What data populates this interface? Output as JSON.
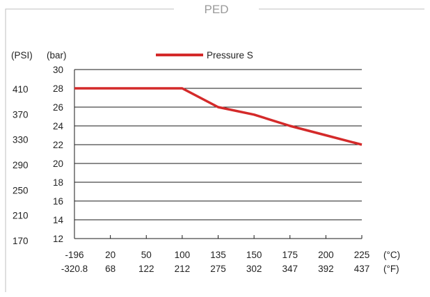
{
  "frame_title": "PED",
  "legend": {
    "label": "Pressure S",
    "color": "#d42a2a"
  },
  "chart_data": {
    "type": "line",
    "title": "PED",
    "ylabel": "(bar)",
    "ylabel_secondary": "(PSI)",
    "xlabel": "(°C)",
    "xlabel_secondary": "(°F)",
    "ylim": [
      12,
      30
    ],
    "y_ticks": [
      12,
      14,
      16,
      18,
      20,
      22,
      24,
      26,
      28,
      30
    ],
    "y_ticks_secondary": [
      170,
      210,
      250,
      290,
      330,
      370,
      410
    ],
    "x_ticks": [
      "-196",
      "20",
      "50",
      "100",
      "135",
      "150",
      "175",
      "200",
      "225"
    ],
    "x_ticks_secondary": [
      "-320.8",
      "68",
      "122",
      "212",
      "275",
      "302",
      "347",
      "392",
      "437"
    ],
    "grid": true,
    "legend_position": "top",
    "series": [
      {
        "name": "Pressure S",
        "color": "#d42a2a",
        "x": [
          "-196",
          "20",
          "50",
          "100",
          "135",
          "150",
          "175",
          "200",
          "225"
        ],
        "values": [
          28,
          28,
          28,
          28,
          26,
          25.2,
          24,
          23,
          22
        ]
      }
    ]
  }
}
